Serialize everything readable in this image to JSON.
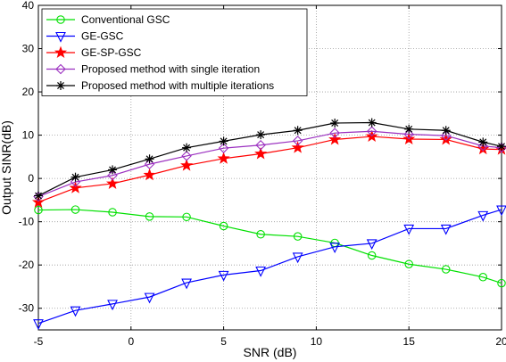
{
  "chart_data": {
    "type": "line",
    "xlabel": "SNR (dB)",
    "ylabel": "Output SINR(dB)",
    "xlim": [
      -5,
      20
    ],
    "ylim": [
      -35,
      40
    ],
    "xticks": [
      -5,
      0,
      5,
      10,
      15,
      20
    ],
    "yticks": [
      -30,
      -20,
      -10,
      0,
      10,
      20,
      30,
      40
    ],
    "grid": true,
    "legend_position": "top-left",
    "x": [
      -5,
      -3,
      -1,
      1,
      3,
      5,
      7,
      9,
      11,
      13,
      15,
      17,
      19,
      20
    ],
    "series": [
      {
        "name": "Conventional GSC",
        "color": "#00e000",
        "marker": "circle",
        "values": [
          -7.3,
          -7.2,
          -7.8,
          -8.8,
          -8.9,
          -11,
          -12.9,
          -13.4,
          -14.9,
          -17.8,
          -19.8,
          -21.0,
          -22.8,
          -24.2
        ]
      },
      {
        "name": "GE-GSC",
        "color": "#0000ff",
        "marker": "triangle-down",
        "values": [
          -33.5,
          -30.5,
          -29.0,
          -27.4,
          -24.1,
          -22.3,
          -21.3,
          -18.1,
          -15.8,
          -15.0,
          -11.6,
          -11.6,
          -8.5,
          -7.2
        ]
      },
      {
        "name": "GE-SP-GSC",
        "color": "#ff0000",
        "marker": "star",
        "values": [
          -5.5,
          -2.2,
          -1.2,
          0.8,
          3.0,
          4.6,
          5.7,
          7.1,
          9.0,
          9.7,
          9.1,
          9.0,
          6.8,
          6.7
        ]
      },
      {
        "name": "Proposed method with single iteration",
        "color": "#9b30c0",
        "marker": "diamond",
        "values": [
          -4.2,
          -0.8,
          0.7,
          3.3,
          5.2,
          7.0,
          7.7,
          8.7,
          10.5,
          10.9,
          10.2,
          9.9,
          7.5,
          7.1
        ]
      },
      {
        "name": "Proposed method with multiple iterations",
        "color": "#000000",
        "marker": "asterisk",
        "values": [
          -4.0,
          0.3,
          2.0,
          4.5,
          7.1,
          8.6,
          10.1,
          11.1,
          12.8,
          12.9,
          11.4,
          11.1,
          8.4,
          7.4
        ]
      }
    ]
  }
}
